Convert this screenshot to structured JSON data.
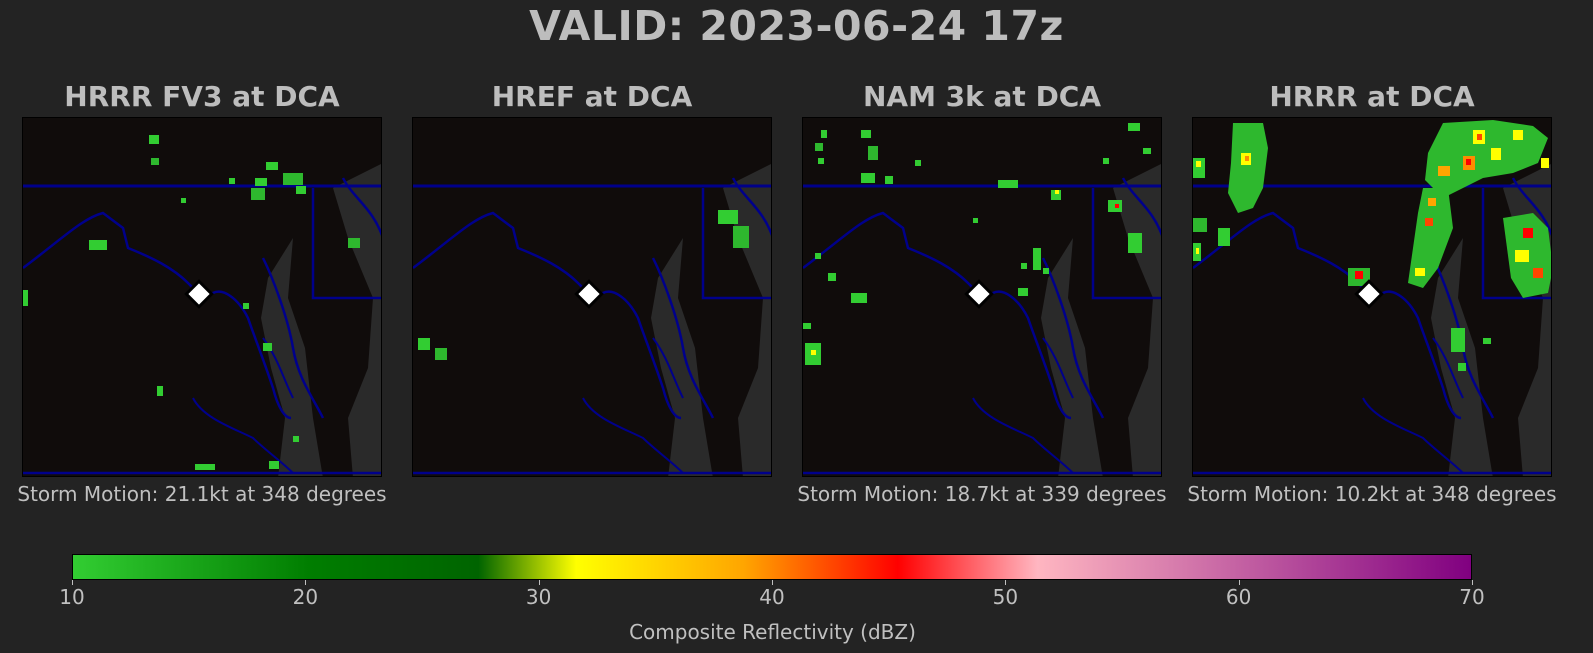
{
  "title": "VALID: 2023-06-24 17z",
  "panels": [
    {
      "title": "HRRR FV3 at DCA",
      "motion": "Storm Motion: 21.1kt at 348 degrees"
    },
    {
      "title": "HREF at DCA",
      "motion": ""
    },
    {
      "title": "NAM 3k at DCA",
      "motion": "Storm Motion: 18.7kt at 339 degrees"
    },
    {
      "title": "HRRR at DCA",
      "motion": "Storm Motion: 10.2kt at 348 degrees"
    }
  ],
  "colorbar": {
    "label": "Composite Reflectivity (dBZ)",
    "ticks": [
      "10",
      "20",
      "30",
      "40",
      "50",
      "60",
      "70"
    ],
    "range": [
      10,
      70
    ]
  },
  "colors": {
    "background": "#232323",
    "map_background": "#100c0b",
    "water": "#2a2a2a",
    "borders": "#00008b",
    "station_marker": "#ffffff"
  }
}
